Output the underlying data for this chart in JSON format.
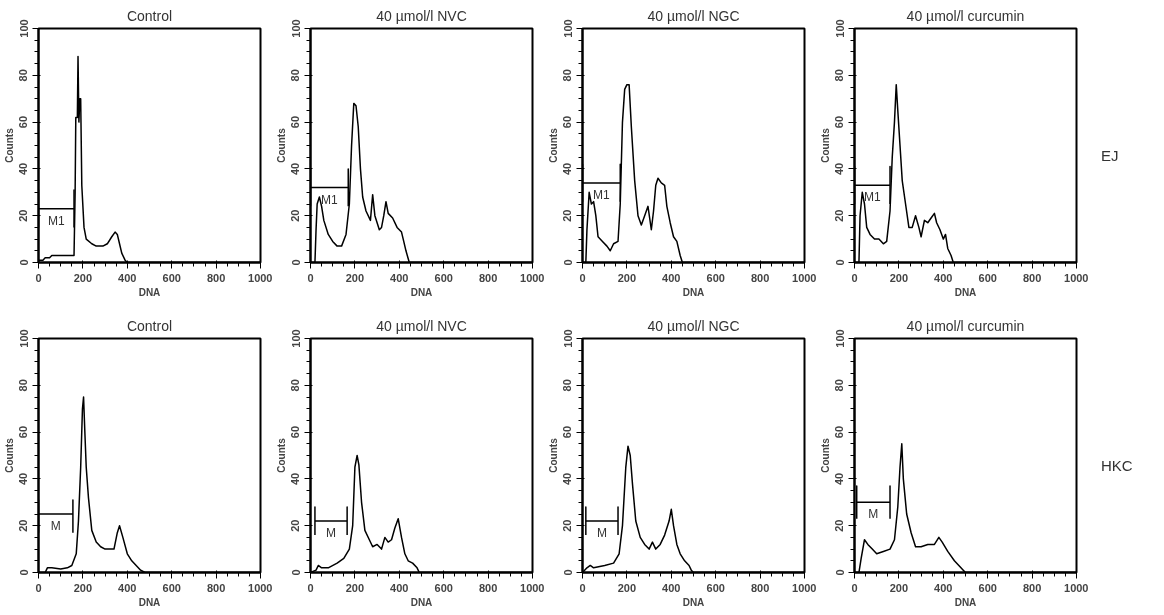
{
  "chart_data": [
    {
      "type": "line",
      "title": "Control",
      "xlabel": "DNA",
      "ylabel": "Counts",
      "xlim": [
        0,
        1000
      ],
      "ylim": [
        0,
        100
      ],
      "xticks": [
        0,
        200,
        400,
        600,
        800,
        1000
      ],
      "yticks": [
        0,
        20,
        40,
        60,
        80,
        100
      ],
      "grid": false,
      "series": [
        {
          "color": "#000000",
          "x": [
            0,
            20,
            30,
            50,
            60,
            80,
            100,
            150,
            160,
            165,
            168,
            175,
            178,
            182,
            186,
            190,
            195,
            205,
            215,
            240,
            260,
            290,
            310,
            330,
            345,
            355,
            365,
            375,
            390,
            400,
            1000
          ],
          "values": [
            1,
            1,
            2,
            2,
            3,
            3,
            3,
            3,
            3,
            30,
            62,
            62,
            88,
            60,
            70,
            70,
            33,
            15,
            10,
            8,
            7,
            7,
            8,
            11,
            13,
            12,
            8,
            4,
            1,
            0,
            0
          ]
        },
        {
          "color": "#000000",
          "x": [
            0,
            0,
            0,
            160,
            160,
            160
          ],
          "values": [
            15,
            31,
            23,
            23,
            31,
            15
          ]
        }
      ],
      "annotations": [
        "M1"
      ]
    },
    {
      "type": "line",
      "title": "40 µmol/l NVC",
      "xlabel": "DNA",
      "ylabel": "Counts",
      "xlim": [
        0,
        1000
      ],
      "ylim": [
        0,
        100
      ],
      "xticks": [
        0,
        200,
        400,
        600,
        800,
        1000
      ],
      "yticks": [
        0,
        20,
        40,
        60,
        80,
        100
      ],
      "grid": false,
      "series": [
        {
          "color": "#000000",
          "x": [
            0,
            20,
            25,
            30,
            40,
            50,
            60,
            80,
            100,
            120,
            140,
            160,
            175,
            185,
            195,
            205,
            215,
            225,
            235,
            250,
            270,
            280,
            290,
            300,
            310,
            320,
            330,
            340,
            350,
            370,
            390,
            410,
            420,
            430,
            445,
            1000
          ],
          "values": [
            0,
            0,
            14,
            25,
            28,
            24,
            18,
            12,
            9,
            7,
            7,
            12,
            25,
            50,
            68,
            67,
            58,
            40,
            28,
            22,
            18,
            29,
            20,
            17,
            14,
            15,
            20,
            26,
            21,
            19,
            15,
            13,
            9,
            5,
            0,
            0
          ]
        },
        {
          "color": "#000000",
          "x": [
            0,
            0,
            0,
            170,
            170,
            170
          ],
          "values": [
            24,
            40,
            32,
            32,
            40,
            24
          ]
        }
      ],
      "annotations": [
        "M1"
      ]
    },
    {
      "type": "line",
      "title": "40 µmol/l NGC",
      "xlabel": "DNA",
      "ylabel": "Counts",
      "xlim": [
        0,
        1000
      ],
      "ylim": [
        0,
        100
      ],
      "xticks": [
        0,
        200,
        400,
        600,
        800,
        1000
      ],
      "yticks": [
        0,
        20,
        40,
        60,
        80,
        100
      ],
      "grid": false,
      "series": [
        {
          "color": "#000000",
          "x": [
            0,
            15,
            20,
            30,
            40,
            50,
            60,
            70,
            90,
            110,
            125,
            140,
            160,
            170,
            180,
            190,
            200,
            210,
            220,
            235,
            250,
            265,
            280,
            295,
            310,
            320,
            330,
            340,
            355,
            370,
            380,
            395,
            410,
            425,
            440,
            450,
            1000
          ],
          "values": [
            0,
            0,
            14,
            30,
            25,
            26,
            20,
            11,
            9,
            7,
            5,
            8,
            9,
            25,
            60,
            74,
            76,
            76,
            58,
            35,
            20,
            16,
            20,
            24,
            14,
            22,
            33,
            36,
            34,
            33,
            24,
            17,
            11,
            9,
            3,
            0,
            0
          ]
        },
        {
          "color": "#000000",
          "x": [
            0,
            0,
            0,
            170,
            170,
            170
          ],
          "values": [
            26,
            42,
            34,
            34,
            42,
            26
          ]
        }
      ],
      "annotations": [
        "M1"
      ]
    },
    {
      "type": "line",
      "title": "40 µmol/l curcumin",
      "xlabel": "DNA",
      "ylabel": "Counts",
      "xlim": [
        0,
        1000
      ],
      "ylim": [
        0,
        100
      ],
      "xticks": [
        0,
        200,
        400,
        600,
        800,
        1000
      ],
      "yticks": [
        0,
        20,
        40,
        60,
        80,
        100
      ],
      "grid": false,
      "series": [
        {
          "color": "#000000",
          "x": [
            0,
            20,
            25,
            35,
            45,
            55,
            70,
            90,
            110,
            130,
            145,
            160,
            170,
            180,
            188,
            195,
            205,
            215,
            230,
            245,
            260,
            275,
            290,
            300,
            315,
            330,
            345,
            360,
            370,
            385,
            400,
            410,
            420,
            435,
            445,
            1000
          ],
          "values": [
            0,
            0,
            20,
            30,
            25,
            15,
            12,
            10,
            10,
            8,
            9,
            22,
            45,
            60,
            76,
            65,
            50,
            35,
            25,
            15,
            15,
            20,
            15,
            11,
            18,
            17,
            19,
            21,
            17,
            14,
            10,
            12,
            6,
            3,
            0,
            0
          ]
        },
        {
          "color": "#000000",
          "x": [
            0,
            0,
            0,
            160,
            160,
            160
          ],
          "values": [
            25,
            41,
            33,
            33,
            41,
            25
          ]
        }
      ],
      "annotations": [
        "M1",
        "EJ"
      ]
    },
    {
      "type": "line",
      "title": "Control",
      "xlabel": "DNA",
      "ylabel": "Counts",
      "xlim": [
        0,
        1000
      ],
      "ylim": [
        0,
        100
      ],
      "xticks": [
        0,
        200,
        400,
        600,
        800,
        1000
      ],
      "yticks": [
        0,
        20,
        40,
        60,
        80,
        100
      ],
      "grid": false,
      "series": [
        {
          "color": "#000000",
          "x": [
            0,
            30,
            40,
            60,
            100,
            130,
            150,
            170,
            180,
            190,
            198,
            203,
            208,
            215,
            225,
            240,
            260,
            280,
            300,
            320,
            340,
            355,
            365,
            380,
            400,
            420,
            440,
            460,
            480,
            1000
          ],
          "values": [
            0,
            0,
            2,
            2,
            1.5,
            2,
            3,
            8,
            22,
            45,
            70,
            75,
            62,
            45,
            32,
            18,
            13,
            11,
            10,
            10,
            10,
            17,
            20,
            15,
            8,
            5,
            3,
            1,
            0,
            0
          ]
        },
        {
          "color": "#000000",
          "x": [
            0,
            0,
            0,
            155,
            155,
            155
          ],
          "values": [
            17,
            31,
            25,
            25,
            31,
            17
          ]
        }
      ],
      "annotations": [
        "M"
      ]
    },
    {
      "type": "line",
      "title": "40 µmol/l NVC",
      "xlabel": "DNA",
      "ylabel": "Counts",
      "xlim": [
        0,
        1000
      ],
      "ylim": [
        0,
        100
      ],
      "xticks": [
        0,
        200,
        400,
        600,
        800,
        1000
      ],
      "yticks": [
        0,
        20,
        40,
        60,
        80,
        100
      ],
      "grid": false,
      "series": [
        {
          "color": "#000000",
          "x": [
            0,
            25,
            35,
            50,
            80,
            120,
            150,
            175,
            190,
            200,
            210,
            218,
            230,
            245,
            265,
            280,
            300,
            320,
            335,
            350,
            365,
            380,
            395,
            410,
            425,
            440,
            460,
            480,
            490,
            1000
          ],
          "values": [
            0,
            1,
            3,
            2,
            2,
            4,
            6,
            10,
            20,
            45,
            50,
            46,
            30,
            18,
            14,
            11,
            12,
            10,
            15,
            13,
            14,
            19,
            23,
            15,
            8,
            5,
            4,
            2,
            0,
            0
          ]
        },
        {
          "color": "#000000",
          "x": [
            20,
            20,
            20,
            165,
            165,
            165
          ],
          "values": [
            16,
            28,
            22,
            22,
            28,
            16
          ]
        }
      ],
      "annotations": [
        "M"
      ]
    },
    {
      "type": "line",
      "title": "40 µmol/l NGC",
      "xlabel": "DNA",
      "ylabel": "Counts",
      "xlim": [
        0,
        1000
      ],
      "ylim": [
        0,
        100
      ],
      "xticks": [
        0,
        200,
        400,
        600,
        800,
        1000
      ],
      "yticks": [
        0,
        20,
        40,
        60,
        80,
        100
      ],
      "grid": false,
      "series": [
        {
          "color": "#000000",
          "x": [
            0,
            20,
            35,
            50,
            100,
            140,
            165,
            180,
            195,
            205,
            215,
            225,
            240,
            260,
            280,
            300,
            315,
            330,
            350,
            370,
            390,
            400,
            410,
            425,
            440,
            460,
            480,
            490,
            500,
            1000
          ],
          "values": [
            0,
            2,
            3,
            2,
            3,
            4,
            8,
            20,
            45,
            54,
            50,
            38,
            22,
            15,
            12,
            10,
            13,
            10,
            12,
            16,
            22,
            27,
            20,
            12,
            8,
            5,
            3,
            1,
            0,
            0
          ]
        },
        {
          "color": "#000000",
          "x": [
            15,
            15,
            15,
            160,
            160,
            160
          ],
          "values": [
            16,
            28,
            22,
            22,
            28,
            16
          ]
        }
      ],
      "annotations": [
        "M"
      ]
    },
    {
      "type": "line",
      "title": "40 µmol/l curcumin",
      "xlabel": "DNA",
      "ylabel": "Counts",
      "xlim": [
        0,
        1000
      ],
      "ylim": [
        0,
        100
      ],
      "xticks": [
        0,
        200,
        400,
        600,
        800,
        1000
      ],
      "yticks": [
        0,
        20,
        40,
        60,
        80,
        100
      ],
      "grid": false,
      "series": [
        {
          "color": "#000000",
          "x": [
            0,
            20,
            30,
            45,
            60,
            80,
            100,
            130,
            160,
            180,
            195,
            205,
            213,
            220,
            235,
            255,
            275,
            300,
            330,
            360,
            380,
            395,
            420,
            450,
            470,
            490,
            500,
            1000
          ],
          "values": [
            0,
            0,
            6,
            14,
            12,
            10,
            8,
            9,
            10,
            14,
            28,
            45,
            55,
            40,
            25,
            17,
            11,
            11,
            12,
            12,
            15,
            13,
            9,
            5,
            3,
            1,
            0,
            0
          ]
        },
        {
          "color": "#000000",
          "x": [
            10,
            10,
            10,
            160,
            160,
            160
          ],
          "values": [
            23,
            37,
            30,
            30,
            37,
            23
          ]
        }
      ],
      "annotations": [
        "M",
        "HKC"
      ]
    }
  ]
}
